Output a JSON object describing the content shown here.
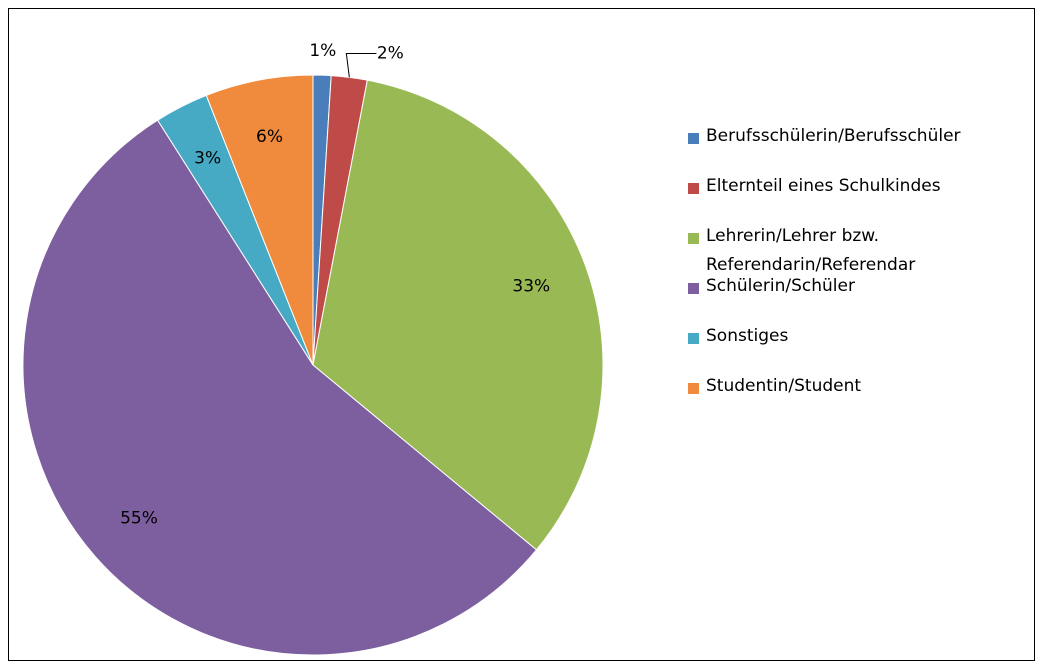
{
  "chart_data": {
    "type": "pie",
    "categories": [
      "Berufsschülerin/Berufsschüler",
      "Elternteil eines Schulkindes",
      "Lehrerin/Lehrer bzw. Referendarin/Referendar",
      "Schülerin/Schüler",
      "Sonstiges",
      "Studentin/Student"
    ],
    "values": [
      1,
      2,
      33,
      55,
      3,
      6
    ],
    "value_labels": [
      "1%",
      "2%",
      "33%",
      "55%",
      "3%",
      "6%"
    ],
    "colors": [
      "#4a7ebb",
      "#be4b48",
      "#98b954",
      "#7d5fa0",
      "#46aac5",
      "#f08a3c"
    ],
    "legend": "right"
  }
}
